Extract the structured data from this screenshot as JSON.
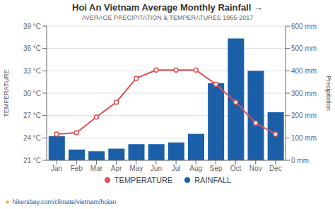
{
  "chart_data": {
    "type": "bar",
    "title": "Hoi An Vietnam Average Monthly Rainfall →",
    "subtitle": "AVERAGE PRECIPITATION & TEMPERATURES 1965-2017",
    "categories": [
      "Jan",
      "Feb",
      "Mar",
      "Apr",
      "May",
      "Jun",
      "Jul",
      "Aug",
      "Sep",
      "Oct",
      "Nov",
      "Dec"
    ],
    "series": [
      {
        "name": "TEMPERATURE",
        "type": "line",
        "axis": "y",
        "color": "#e05050",
        "marker": "circle",
        "values": [
          24.5,
          24.7,
          26.8,
          28.8,
          32.0,
          33.1,
          33.1,
          33.1,
          31.2,
          28.8,
          26.0,
          24.5
        ]
      },
      {
        "name": "RAINFALL",
        "type": "bar",
        "axis": "y2",
        "color": "#1a5fa8",
        "values": [
          108,
          48,
          40,
          52,
          72,
          72,
          80,
          118,
          345,
          545,
          400,
          215
        ]
      }
    ],
    "y_label": "TEMPERATURE",
    "y2_label": "Precipitation",
    "ylim": [
      21,
      39
    ],
    "yticks": [
      {
        "value": 21,
        "label": "21 °C"
      },
      {
        "value": 24,
        "label": "24 °C"
      },
      {
        "value": 27,
        "label": "27 °C"
      },
      {
        "value": 30,
        "label": "30 °C"
      },
      {
        "value": 33,
        "label": "33 °C"
      },
      {
        "value": 36,
        "label": "36 °C"
      },
      {
        "value": 39,
        "label": "39 °C"
      }
    ],
    "y2lim": [
      0,
      600
    ],
    "y2ticks": [
      {
        "value": 0,
        "label": "0 mm"
      },
      {
        "value": 100,
        "label": "100 mm"
      },
      {
        "value": 200,
        "label": "200 mm"
      },
      {
        "value": 300,
        "label": "300 mm"
      },
      {
        "value": 400,
        "label": "400 mm"
      },
      {
        "value": 500,
        "label": "500 mm"
      },
      {
        "value": 600,
        "label": "600 mm"
      }
    ],
    "grid": true,
    "legend": "bottom",
    "annotations": [
      {
        "text": "●",
        "color": "#e8a020"
      },
      {
        "text": "hikersbay.com/climate/vietnam/hoian",
        "color": "#2255a0"
      }
    ]
  }
}
